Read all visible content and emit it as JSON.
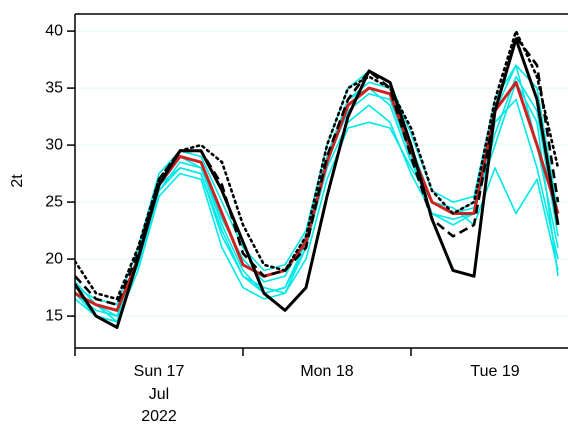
{
  "chart_data": {
    "type": "line",
    "y_label": "2t",
    "categories": [
      null,
      null,
      null,
      null,
      "Sun 17",
      null,
      null,
      null,
      null,
      null,
      null,
      null,
      "Mon 18",
      null,
      null,
      null,
      null,
      null,
      null,
      null,
      "Tue 19",
      null,
      null,
      null
    ],
    "x_sublabels": [
      "Jul",
      "2022"
    ],
    "ylim": [
      12.2,
      41.5
    ],
    "yticks": [
      15,
      20,
      25,
      30,
      35,
      40
    ],
    "grid": true,
    "grid_color": "#dff7f7",
    "series": [
      {
        "color": "#00e8e8",
        "linestyle": "solid",
        "values": [
          17,
          15.5,
          15,
          19.5,
          26,
          28,
          27.5,
          22,
          18.5,
          17.5,
          17,
          21,
          28,
          32,
          33.5,
          32,
          27.5,
          24,
          23,
          24,
          31,
          36,
          33,
          22
        ]
      },
      {
        "color": "#00e8e8",
        "linestyle": "solid",
        "values": [
          18,
          16,
          14.5,
          20.5,
          27,
          29,
          28,
          23.5,
          20,
          18,
          18.5,
          22,
          29,
          34,
          35.5,
          35,
          30,
          25,
          24,
          25,
          33,
          37,
          30,
          21
        ]
      },
      {
        "color": "#00e8e8",
        "linestyle": "solid",
        "values": [
          16.5,
          15,
          14.5,
          19,
          25.5,
          27.5,
          27,
          21,
          17.5,
          16.5,
          17,
          20,
          27,
          31.5,
          32,
          31.5,
          28,
          25,
          24.5,
          23,
          28,
          24,
          27,
          19
        ]
      },
      {
        "color": "#00e8e8",
        "linestyle": "solid",
        "values": [
          17.5,
          16.5,
          16,
          21,
          27.5,
          29.5,
          29,
          25,
          21,
          19,
          19.5,
          22.5,
          30,
          35,
          36.5,
          35.5,
          31,
          26,
          25,
          25.5,
          34,
          37,
          35,
          24
        ]
      },
      {
        "color": "#00e8e8",
        "linestyle": "solid",
        "values": [
          17,
          15,
          14.5,
          20,
          26,
          28.5,
          28,
          23,
          19,
          17,
          17.5,
          21,
          28.5,
          33,
          34.5,
          34,
          29,
          24,
          23.5,
          24,
          32,
          34,
          28,
          20
        ]
      },
      {
        "color": "#00e8e8",
        "linestyle": "solid",
        "values": [
          18,
          16,
          15,
          20,
          26.5,
          28,
          27.5,
          22.5,
          18.5,
          17,
          17.5,
          21.5,
          29,
          34,
          35,
          33.5,
          28.5,
          25,
          24,
          24.5,
          30,
          35.5,
          32,
          18.5
        ]
      },
      {
        "color": "#cc2222",
        "linestyle": "solid",
        "values": [
          17,
          16,
          15.5,
          20,
          26.5,
          29,
          28.5,
          24,
          19.5,
          18.5,
          19,
          21.5,
          28.5,
          33.5,
          35,
          34.5,
          29.5,
          25,
          24,
          24,
          33,
          35.5,
          30,
          24
        ]
      },
      {
        "color": "#000000",
        "linestyle": "dotted",
        "values": [
          19.8,
          17,
          16.5,
          21,
          27,
          29.5,
          30,
          28.5,
          23,
          19.5,
          19,
          22,
          30,
          35,
          36,
          35,
          31.5,
          26,
          24,
          25,
          34,
          40,
          36,
          28
        ]
      },
      {
        "color": "#000000",
        "linestyle": "dashed",
        "values": [
          18.5,
          16.5,
          16,
          20.5,
          27,
          29.5,
          29.5,
          26.5,
          20.5,
          18.5,
          19,
          21,
          29,
          34,
          36.5,
          35,
          29,
          23.5,
          22,
          23,
          33,
          39.5,
          37,
          25
        ]
      },
      {
        "color": "#000000",
        "linestyle": "solid",
        "values": [
          17.8,
          15,
          14,
          20,
          26.5,
          29.5,
          29.5,
          26,
          21.5,
          17,
          15.5,
          17.5,
          25.5,
          32.5,
          36.5,
          35.5,
          30,
          23.5,
          19,
          18.5,
          33,
          39.3,
          34,
          23
        ]
      }
    ]
  }
}
